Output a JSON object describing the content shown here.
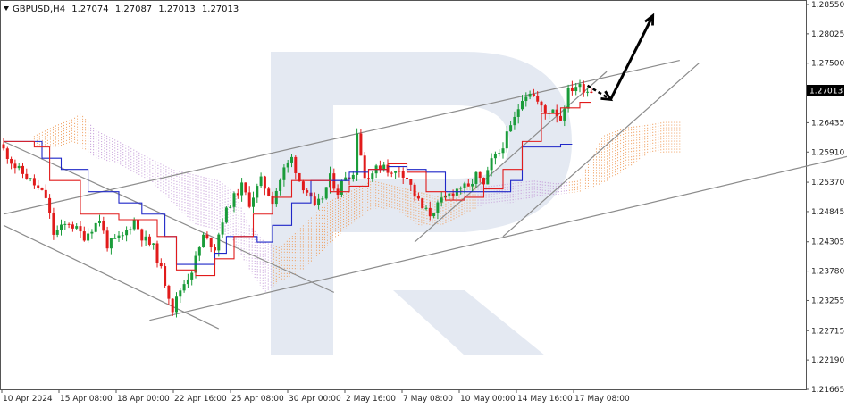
{
  "header": {
    "symbol": "GBPUSD,H4",
    "open": "1.27074",
    "high": "1.27087",
    "low": "1.27013",
    "close": "1.27013"
  },
  "colors": {
    "bull": "#1a9c3a",
    "bear": "#e11b1b",
    "tenkan": "#e11b1b",
    "kijun": "#1f27c8",
    "cloud_bull": "#f0a060",
    "cloud_bear": "#c49bd8",
    "channel": "#8c8c8c",
    "watermark": "#e4e9f2",
    "arrow": "#000000"
  },
  "chart_data": {
    "type": "candlestick",
    "title": "",
    "indicators": [
      "ichimoku-tenkan",
      "ichimoku-kijun",
      "ichimoku-cloud",
      "trend-channels",
      "forecast-arrow"
    ],
    "ylim": [
      1.21665,
      1.2855
    ],
    "y_ticks": [
      "1.28550",
      "1.28025",
      "1.27500",
      "1.26435",
      "1.25910",
      "1.25370",
      "1.24845",
      "1.24305",
      "1.23780",
      "1.23255",
      "1.22715",
      "1.22190",
      "1.21665"
    ],
    "x_ticks": [
      "10 Apr 2024",
      "15 Apr 08:00",
      "18 Apr 00:00",
      "22 Apr 16:00",
      "25 Apr 08:00",
      "30 Apr 00:00",
      "2 May 16:00",
      "7 May 08:00",
      "10 May 00:00",
      "14 May 16:00",
      "17 May 08:00"
    ],
    "current_price": "1.27013",
    "price_path": [
      [
        0,
        1.2605
      ],
      [
        4,
        1.2565
      ],
      [
        8,
        1.254
      ],
      [
        12,
        1.251
      ],
      [
        14,
        1.2445
      ],
      [
        18,
        1.2465
      ],
      [
        22,
        1.244
      ],
      [
        26,
        1.247
      ],
      [
        28,
        1.2425
      ],
      [
        32,
        1.244
      ],
      [
        35,
        1.247
      ],
      [
        37,
        1.244
      ],
      [
        40,
        1.242
      ],
      [
        42,
        1.238
      ],
      [
        44,
        1.2335
      ],
      [
        45,
        1.231
      ],
      [
        47,
        1.2345
      ],
      [
        50,
        1.238
      ],
      [
        53,
        1.244
      ],
      [
        56,
        1.242
      ],
      [
        58,
        1.247
      ],
      [
        60,
        1.25
      ],
      [
        63,
        1.253
      ],
      [
        65,
        1.25
      ],
      [
        68,
        1.254
      ],
      [
        71,
        1.2505
      ],
      [
        74,
        1.256
      ],
      [
        76,
        1.258
      ],
      [
        78,
        1.254
      ],
      [
        80,
        1.252
      ],
      [
        82,
        1.249
      ],
      [
        84,
        1.251
      ],
      [
        86,
        1.2545
      ],
      [
        88,
        1.252
      ],
      [
        90,
        1.255
      ],
      [
        92,
        1.255
      ],
      [
        93,
        1.263
      ],
      [
        95,
        1.2545
      ],
      [
        98,
        1.256
      ],
      [
        100,
        1.257
      ],
      [
        102,
        1.255
      ],
      [
        104,
        1.256
      ],
      [
        106,
        1.2545
      ],
      [
        108,
        1.2515
      ],
      [
        110,
        1.249
      ],
      [
        112,
        1.248
      ],
      [
        114,
        1.2495
      ],
      [
        116,
        1.251
      ],
      [
        118,
        1.252
      ],
      [
        120,
        1.253
      ],
      [
        122,
        1.2525
      ],
      [
        124,
        1.255
      ],
      [
        126,
        1.253
      ],
      [
        128,
        1.2575
      ],
      [
        130,
        1.259
      ],
      [
        132,
        1.262
      ],
      [
        134,
        1.265
      ],
      [
        136,
        1.269
      ],
      [
        138,
        1.27
      ],
      [
        140,
        1.268
      ],
      [
        142,
        1.266
      ],
      [
        144,
        1.267
      ],
      [
        146,
        1.265
      ],
      [
        148,
        1.27
      ],
      [
        150,
        1.271
      ],
      [
        152,
        1.2705
      ],
      [
        153,
        1.27013
      ]
    ],
    "tenkan_path": [
      [
        0,
        1.261
      ],
      [
        8,
        1.26
      ],
      [
        12,
        1.254
      ],
      [
        20,
        1.248
      ],
      [
        30,
        1.247
      ],
      [
        40,
        1.244
      ],
      [
        45,
        1.238
      ],
      [
        50,
        1.237
      ],
      [
        55,
        1.24
      ],
      [
        60,
        1.244
      ],
      [
        65,
        1.248
      ],
      [
        70,
        1.251
      ],
      [
        75,
        1.254
      ],
      [
        80,
        1.254
      ],
      [
        85,
        1.252
      ],
      [
        90,
        1.253
      ],
      [
        95,
        1.256
      ],
      [
        100,
        1.257
      ],
      [
        105,
        1.2555
      ],
      [
        110,
        1.252
      ],
      [
        115,
        1.2505
      ],
      [
        120,
        1.251
      ],
      [
        125,
        1.2525
      ],
      [
        130,
        1.256
      ],
      [
        135,
        1.261
      ],
      [
        140,
        1.266
      ],
      [
        145,
        1.267
      ],
      [
        150,
        1.268
      ],
      [
        153,
        1.268
      ]
    ],
    "kijun_path": [
      [
        0,
        1.261
      ],
      [
        5,
        1.261
      ],
      [
        10,
        1.258
      ],
      [
        15,
        1.256
      ],
      [
        22,
        1.252
      ],
      [
        30,
        1.25
      ],
      [
        36,
        1.248
      ],
      [
        42,
        1.244
      ],
      [
        45,
        1.239
      ],
      [
        52,
        1.239
      ],
      [
        55,
        1.241
      ],
      [
        58,
        1.244
      ],
      [
        63,
        1.244
      ],
      [
        66,
        1.243
      ],
      [
        70,
        1.246
      ],
      [
        75,
        1.25
      ],
      [
        80,
        1.254
      ],
      [
        85,
        1.254
      ],
      [
        90,
        1.2555
      ],
      [
        95,
        1.256
      ],
      [
        100,
        1.2565
      ],
      [
        105,
        1.256
      ],
      [
        110,
        1.2555
      ],
      [
        115,
        1.252
      ],
      [
        120,
        1.252
      ],
      [
        125,
        1.252
      ],
      [
        130,
        1.252
      ],
      [
        132,
        1.254
      ],
      [
        135,
        1.26
      ],
      [
        140,
        1.26
      ],
      [
        145,
        1.2605
      ],
      [
        148,
        1.2605
      ]
    ],
    "cloud": [
      {
        "x": 8,
        "top": 1.262,
        "bottom": 1.26,
        "bull": true
      },
      {
        "x": 14,
        "top": 1.264,
        "bottom": 1.26,
        "bull": true
      },
      {
        "x": 18,
        "top": 1.265,
        "bottom": 1.261,
        "bull": true
      },
      {
        "x": 20,
        "top": 1.266,
        "bottom": 1.26,
        "bull": true
      },
      {
        "x": 24,
        "top": 1.263,
        "bottom": 1.258,
        "bull": false
      },
      {
        "x": 30,
        "top": 1.261,
        "bottom": 1.257,
        "bull": false
      },
      {
        "x": 38,
        "top": 1.258,
        "bottom": 1.254,
        "bull": false
      },
      {
        "x": 44,
        "top": 1.256,
        "bottom": 1.25,
        "bull": false
      },
      {
        "x": 50,
        "top": 1.255,
        "bottom": 1.246,
        "bull": false
      },
      {
        "x": 56,
        "top": 1.254,
        "bottom": 1.245,
        "bull": false
      },
      {
        "x": 60,
        "top": 1.252,
        "bottom": 1.243,
        "bull": false
      },
      {
        "x": 64,
        "top": 1.246,
        "bottom": 1.238,
        "bull": false
      },
      {
        "x": 68,
        "top": 1.243,
        "bottom": 1.234,
        "bull": false
      },
      {
        "x": 72,
        "top": 1.242,
        "bottom": 1.236,
        "bull": true
      },
      {
        "x": 78,
        "top": 1.246,
        "bottom": 1.238,
        "bull": true
      },
      {
        "x": 84,
        "top": 1.25,
        "bottom": 1.242,
        "bull": true
      },
      {
        "x": 90,
        "top": 1.252,
        "bottom": 1.246,
        "bull": true
      },
      {
        "x": 96,
        "top": 1.254,
        "bottom": 1.249,
        "bull": true
      },
      {
        "x": 102,
        "top": 1.253,
        "bottom": 1.249,
        "bull": true
      },
      {
        "x": 108,
        "top": 1.252,
        "bottom": 1.246,
        "bull": true
      },
      {
        "x": 114,
        "top": 1.251,
        "bottom": 1.246,
        "bull": true
      },
      {
        "x": 120,
        "top": 1.253,
        "bottom": 1.248,
        "bull": true
      },
      {
        "x": 126,
        "top": 1.253,
        "bottom": 1.25,
        "bull": false
      },
      {
        "x": 132,
        "top": 1.2535,
        "bottom": 1.25,
        "bull": false
      },
      {
        "x": 138,
        "top": 1.254,
        "bottom": 1.251,
        "bull": false
      },
      {
        "x": 144,
        "top": 1.2535,
        "bottom": 1.2515,
        "bull": false
      },
      {
        "x": 150,
        "top": 1.254,
        "bottom": 1.252,
        "bull": true
      },
      {
        "x": 156,
        "top": 1.262,
        "bottom": 1.2535,
        "bull": true
      },
      {
        "x": 162,
        "top": 1.2635,
        "bottom": 1.256,
        "bull": true
      },
      {
        "x": 168,
        "top": 1.264,
        "bottom": 1.259,
        "bull": true
      },
      {
        "x": 172,
        "top": 1.2645,
        "bottom": 1.259,
        "bull": true
      },
      {
        "x": 176,
        "top": 1.2645,
        "bottom": 1.259,
        "bull": true
      }
    ],
    "channels": [
      {
        "name": "upper-rising",
        "from": [
          0,
          1.248
        ],
        "to": [
          176,
          1.2755
        ]
      },
      {
        "name": "lower-rising",
        "from": [
          38,
          1.229
        ],
        "to": [
          224,
          1.259
        ]
      },
      {
        "name": "falling-top",
        "from": [
          0,
          1.261
        ],
        "to": [
          86,
          1.234
        ]
      },
      {
        "name": "falling-bottom",
        "from": [
          0,
          1.246
        ],
        "to": [
          56,
          1.2275
        ]
      },
      {
        "name": "steep-top",
        "from": [
          107,
          1.243
        ],
        "to": [
          157,
          1.2735
        ]
      },
      {
        "name": "steep-bottom",
        "from": [
          130,
          1.244
        ],
        "to": [
          181,
          1.275
        ]
      }
    ],
    "forecast": [
      [
        152,
        1.271
      ],
      [
        158,
        1.2685
      ],
      [
        169,
        1.2835
      ]
    ]
  }
}
